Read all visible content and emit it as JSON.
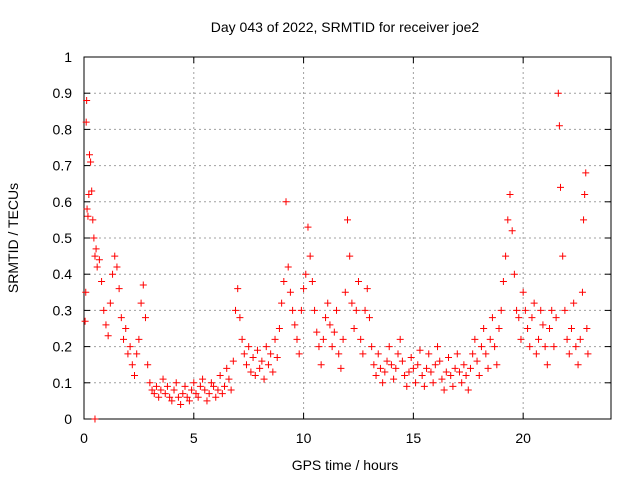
{
  "chart_data": {
    "type": "scatter",
    "title": "Day 043 of 2022, SRMTID for receiver joe2",
    "xlabel": "GPS time / hours",
    "ylabel": "SRMTID / TECUs",
    "xlim": [
      0,
      24
    ],
    "ylim": [
      0,
      1
    ],
    "xticks": [
      0,
      5,
      10,
      15,
      20
    ],
    "xtick_labels": [
      "0",
      "5",
      "10",
      "15",
      "20"
    ],
    "yticks": [
      0,
      0.1,
      0.2,
      0.3,
      0.4,
      0.5,
      0.6,
      0.7,
      0.8,
      0.9,
      1
    ],
    "ytick_labels": [
      "0",
      "0.1",
      "0.2",
      "0.3",
      "0.4",
      "0.5",
      "0.6",
      "0.7",
      "0.8",
      "0.9",
      "1"
    ],
    "grid": true,
    "marker": "plus",
    "color": "#ff0000",
    "series": [
      {
        "name": "SRMTID",
        "points": [
          [
            0.05,
            0.27
          ],
          [
            0.08,
            0.35
          ],
          [
            0.1,
            0.82
          ],
          [
            0.12,
            0.88
          ],
          [
            0.14,
            0.58
          ],
          [
            0.18,
            0.56
          ],
          [
            0.22,
            0.62
          ],
          [
            0.25,
            0.73
          ],
          [
            0.3,
            0.71
          ],
          [
            0.35,
            0.63
          ],
          [
            0.4,
            0.55
          ],
          [
            0.45,
            0.5
          ],
          [
            0.5,
            0.45
          ],
          [
            0.55,
            0.47
          ],
          [
            0.6,
            0.42
          ],
          [
            0.7,
            0.44
          ],
          [
            0.8,
            0.38
          ],
          [
            0.9,
            0.3
          ],
          [
            1.0,
            0.26
          ],
          [
            1.1,
            0.23
          ],
          [
            1.2,
            0.32
          ],
          [
            1.3,
            0.4
          ],
          [
            1.4,
            0.45
          ],
          [
            1.5,
            0.42
          ],
          [
            1.6,
            0.36
          ],
          [
            1.7,
            0.28
          ],
          [
            1.8,
            0.22
          ],
          [
            1.9,
            0.25
          ],
          [
            2.0,
            0.18
          ],
          [
            2.1,
            0.2
          ],
          [
            2.2,
            0.15
          ],
          [
            2.3,
            0.12
          ],
          [
            2.4,
            0.18
          ],
          [
            2.5,
            0.22
          ],
          [
            2.6,
            0.32
          ],
          [
            2.7,
            0.37
          ],
          [
            2.8,
            0.28
          ],
          [
            2.9,
            0.15
          ],
          [
            3.0,
            0.1
          ],
          [
            3.1,
            0.08
          ],
          [
            3.2,
            0.07
          ],
          [
            3.3,
            0.09
          ],
          [
            3.4,
            0.06
          ],
          [
            3.5,
            0.08
          ],
          [
            3.6,
            0.11
          ],
          [
            3.7,
            0.07
          ],
          [
            3.8,
            0.09
          ],
          [
            3.9,
            0.06
          ],
          [
            4.0,
            0.05
          ],
          [
            4.1,
            0.08
          ],
          [
            4.2,
            0.1
          ],
          [
            4.3,
            0.06
          ],
          [
            4.4,
            0.04
          ],
          [
            4.5,
            0.07
          ],
          [
            4.6,
            0.09
          ],
          [
            4.7,
            0.06
          ],
          [
            4.8,
            0.05
          ],
          [
            4.9,
            0.08
          ],
          [
            5.0,
            0.1
          ],
          [
            5.1,
            0.07
          ],
          [
            5.2,
            0.06
          ],
          [
            5.3,
            0.09
          ],
          [
            5.4,
            0.11
          ],
          [
            5.5,
            0.08
          ],
          [
            5.6,
            0.05
          ],
          [
            5.7,
            0.07
          ],
          [
            5.8,
            0.1
          ],
          [
            5.9,
            0.09
          ],
          [
            6.0,
            0.06
          ],
          [
            6.1,
            0.08
          ],
          [
            6.2,
            0.12
          ],
          [
            6.3,
            0.07
          ],
          [
            6.4,
            0.09
          ],
          [
            6.5,
            0.14
          ],
          [
            6.6,
            0.11
          ],
          [
            6.7,
            0.08
          ],
          [
            6.8,
            0.16
          ],
          [
            6.9,
            0.3
          ],
          [
            7.0,
            0.36
          ],
          [
            7.1,
            0.28
          ],
          [
            7.2,
            0.22
          ],
          [
            7.3,
            0.18
          ],
          [
            7.4,
            0.15
          ],
          [
            7.5,
            0.2
          ],
          [
            7.6,
            0.13
          ],
          [
            7.7,
            0.17
          ],
          [
            7.8,
            0.12
          ],
          [
            7.9,
            0.19
          ],
          [
            8.0,
            0.14
          ],
          [
            8.1,
            0.16
          ],
          [
            8.2,
            0.11
          ],
          [
            8.3,
            0.2
          ],
          [
            8.4,
            0.15
          ],
          [
            8.5,
            0.18
          ],
          [
            8.6,
            0.13
          ],
          [
            8.7,
            0.22
          ],
          [
            8.8,
            0.17
          ],
          [
            8.9,
            0.25
          ],
          [
            9.0,
            0.32
          ],
          [
            9.1,
            0.38
          ],
          [
            9.2,
            0.6
          ],
          [
            9.3,
            0.42
          ],
          [
            9.4,
            0.35
          ],
          [
            9.5,
            0.3
          ],
          [
            9.6,
            0.26
          ],
          [
            9.7,
            0.22
          ],
          [
            9.8,
            0.18
          ],
          [
            9.9,
            0.3
          ],
          [
            10.0,
            0.36
          ],
          [
            10.1,
            0.4
          ],
          [
            10.2,
            0.53
          ],
          [
            10.3,
            0.45
          ],
          [
            10.4,
            0.38
          ],
          [
            10.5,
            0.3
          ],
          [
            10.6,
            0.24
          ],
          [
            10.7,
            0.2
          ],
          [
            10.8,
            0.15
          ],
          [
            10.9,
            0.22
          ],
          [
            11.0,
            0.28
          ],
          [
            11.1,
            0.32
          ],
          [
            11.2,
            0.26
          ],
          [
            11.3,
            0.2
          ],
          [
            11.4,
            0.24
          ],
          [
            11.5,
            0.3
          ],
          [
            11.6,
            0.18
          ],
          [
            11.7,
            0.14
          ],
          [
            11.8,
            0.22
          ],
          [
            11.9,
            0.35
          ],
          [
            12.0,
            0.55
          ],
          [
            12.1,
            0.45
          ],
          [
            12.2,
            0.32
          ],
          [
            12.3,
            0.25
          ],
          [
            12.4,
            0.3
          ],
          [
            12.5,
            0.38
          ],
          [
            12.6,
            0.22
          ],
          [
            12.7,
            0.18
          ],
          [
            12.8,
            0.3
          ],
          [
            12.9,
            0.36
          ],
          [
            13.0,
            0.28
          ],
          [
            13.1,
            0.2
          ],
          [
            13.2,
            0.15
          ],
          [
            13.3,
            0.12
          ],
          [
            13.4,
            0.18
          ],
          [
            13.5,
            0.14
          ],
          [
            13.6,
            0.1
          ],
          [
            13.7,
            0.13
          ],
          [
            13.8,
            0.16
          ],
          [
            13.9,
            0.2
          ],
          [
            14.0,
            0.15
          ],
          [
            14.1,
            0.11
          ],
          [
            14.2,
            0.14
          ],
          [
            14.3,
            0.18
          ],
          [
            14.4,
            0.22
          ],
          [
            14.5,
            0.16
          ],
          [
            14.6,
            0.12
          ],
          [
            14.7,
            0.09
          ],
          [
            14.8,
            0.13
          ],
          [
            14.9,
            0.17
          ],
          [
            15.0,
            0.14
          ],
          [
            15.1,
            0.1
          ],
          [
            15.2,
            0.15
          ],
          [
            15.3,
            0.19
          ],
          [
            15.4,
            0.12
          ],
          [
            15.5,
            0.09
          ],
          [
            15.6,
            0.14
          ],
          [
            15.7,
            0.18
          ],
          [
            15.8,
            0.13
          ],
          [
            15.9,
            0.1
          ],
          [
            16.0,
            0.15
          ],
          [
            16.1,
            0.2
          ],
          [
            16.2,
            0.16
          ],
          [
            16.3,
            0.11
          ],
          [
            16.4,
            0.08
          ],
          [
            16.5,
            0.13
          ],
          [
            16.6,
            0.17
          ],
          [
            16.7,
            0.12
          ],
          [
            16.8,
            0.09
          ],
          [
            16.9,
            0.14
          ],
          [
            17.0,
            0.18
          ],
          [
            17.1,
            0.13
          ],
          [
            17.2,
            0.1
          ],
          [
            17.3,
            0.15
          ],
          [
            17.4,
            0.12
          ],
          [
            17.5,
            0.08
          ],
          [
            17.6,
            0.14
          ],
          [
            17.7,
            0.18
          ],
          [
            17.8,
            0.22
          ],
          [
            17.9,
            0.16
          ],
          [
            18.0,
            0.12
          ],
          [
            18.1,
            0.2
          ],
          [
            18.2,
            0.25
          ],
          [
            18.3,
            0.18
          ],
          [
            18.4,
            0.14
          ],
          [
            18.5,
            0.22
          ],
          [
            18.6,
            0.28
          ],
          [
            18.7,
            0.2
          ],
          [
            18.8,
            0.15
          ],
          [
            18.9,
            0.25
          ],
          [
            19.0,
            0.3
          ],
          [
            19.1,
            0.38
          ],
          [
            19.2,
            0.45
          ],
          [
            19.3,
            0.55
          ],
          [
            19.4,
            0.62
          ],
          [
            19.5,
            0.52
          ],
          [
            19.6,
            0.4
          ],
          [
            19.7,
            0.3
          ],
          [
            19.8,
            0.28
          ],
          [
            19.9,
            0.22
          ],
          [
            20.0,
            0.35
          ],
          [
            20.1,
            0.3
          ],
          [
            20.2,
            0.25
          ],
          [
            20.3,
            0.2
          ],
          [
            20.4,
            0.28
          ],
          [
            20.5,
            0.32
          ],
          [
            20.6,
            0.18
          ],
          [
            20.7,
            0.22
          ],
          [
            20.8,
            0.3
          ],
          [
            20.9,
            0.26
          ],
          [
            21.0,
            0.2
          ],
          [
            21.1,
            0.15
          ],
          [
            21.2,
            0.25
          ],
          [
            21.3,
            0.3
          ],
          [
            21.4,
            0.2
          ],
          [
            21.5,
            0.28
          ],
          [
            21.6,
            0.9
          ],
          [
            21.65,
            0.81
          ],
          [
            21.7,
            0.64
          ],
          [
            21.8,
            0.45
          ],
          [
            21.9,
            0.3
          ],
          [
            22.0,
            0.22
          ],
          [
            22.1,
            0.18
          ],
          [
            22.2,
            0.25
          ],
          [
            22.3,
            0.32
          ],
          [
            22.4,
            0.2
          ],
          [
            22.5,
            0.15
          ],
          [
            22.6,
            0.22
          ],
          [
            22.7,
            0.35
          ],
          [
            22.75,
            0.55
          ],
          [
            22.8,
            0.62
          ],
          [
            22.85,
            0.68
          ],
          [
            22.9,
            0.25
          ],
          [
            22.95,
            0.18
          ],
          [
            0.5,
            0.0
          ]
        ]
      }
    ]
  }
}
